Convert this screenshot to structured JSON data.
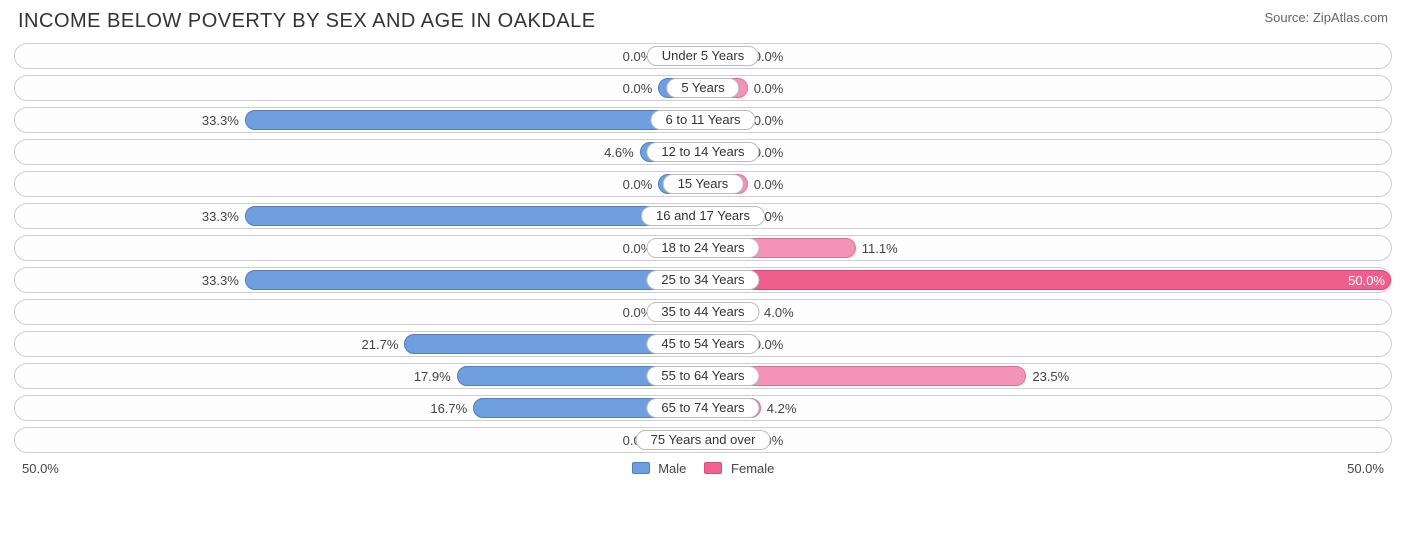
{
  "title": "INCOME BELOW POVERTY BY SEX AND AGE IN OAKDALE",
  "source": "Source: ZipAtlas.com",
  "axis": {
    "max": 50.0,
    "left_label": "50.0%",
    "right_label": "50.0%"
  },
  "legend": {
    "male": "Male",
    "female": "Female"
  },
  "minBarPct": 6.5,
  "colors": {
    "male_fill": "#6f9fde",
    "male_border": "#4f7fc0",
    "female_fill": "#f393b5",
    "female_border": "#e06f98",
    "female_strong_fill": "#ef5f8d",
    "female_strong_border": "#da4577",
    "row_border": "#cfcfcf",
    "cat_border": "#bdbdbd",
    "text": "#444",
    "title_text": "#333",
    "bg": "#ffffff"
  },
  "rows": [
    {
      "category": "Under 5 Years",
      "male": 0.0,
      "female": 0.0
    },
    {
      "category": "5 Years",
      "male": 0.0,
      "female": 0.0
    },
    {
      "category": "6 to 11 Years",
      "male": 33.3,
      "female": 0.0
    },
    {
      "category": "12 to 14 Years",
      "male": 4.6,
      "female": 0.0
    },
    {
      "category": "15 Years",
      "male": 0.0,
      "female": 0.0
    },
    {
      "category": "16 and 17 Years",
      "male": 33.3,
      "female": 0.0
    },
    {
      "category": "18 to 24 Years",
      "male": 0.0,
      "female": 11.1
    },
    {
      "category": "25 to 34 Years",
      "male": 33.3,
      "female": 50.0
    },
    {
      "category": "35 to 44 Years",
      "male": 0.0,
      "female": 4.0
    },
    {
      "category": "45 to 54 Years",
      "male": 21.7,
      "female": 0.0
    },
    {
      "category": "55 to 64 Years",
      "male": 17.9,
      "female": 23.5
    },
    {
      "category": "65 to 74 Years",
      "male": 16.7,
      "female": 4.2
    },
    {
      "category": "75 Years and over",
      "male": 0.0,
      "female": 0.0
    }
  ]
}
